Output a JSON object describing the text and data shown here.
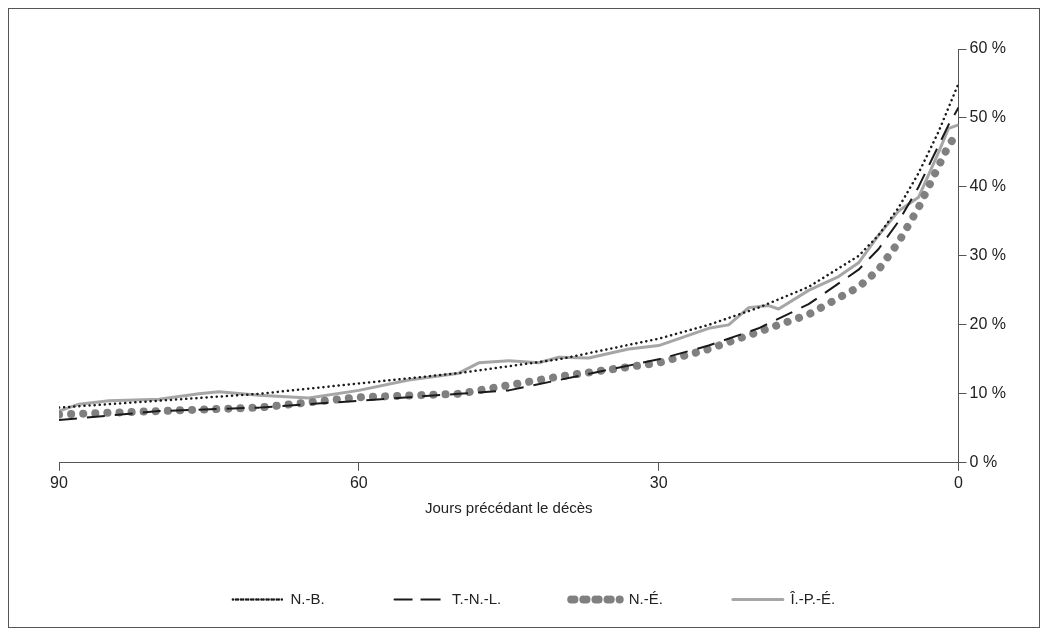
{
  "chart_data": {
    "type": "line",
    "xlabel": "Jours précédant le décès",
    "xlim": [
      90,
      0
    ],
    "xticks": [
      90,
      60,
      30,
      0
    ],
    "ylim": [
      0,
      60
    ],
    "yticks": [
      {
        "value": 0,
        "label": "0 %"
      },
      {
        "value": 10,
        "label": "10 %"
      },
      {
        "value": 20,
        "label": "20 %"
      },
      {
        "value": 30,
        "label": "30 %"
      },
      {
        "value": 40,
        "label": "40 %"
      },
      {
        "value": 50,
        "label": "50 %"
      },
      {
        "value": 60,
        "label": "60 %"
      }
    ],
    "grid": false,
    "legend": "bottom",
    "marker": "none",
    "series": [
      {
        "name": "N.-B.",
        "color": "#1a1a1a",
        "line_style": "dotted",
        "x": [
          90,
          80,
          70,
          60,
          50,
          40,
          30,
          25,
          20,
          15,
          10,
          8,
          6,
          4,
          2,
          1,
          0
        ],
        "values": [
          8.0,
          9.0,
          10.0,
          11.5,
          13.0,
          15.0,
          18.0,
          20.0,
          22.5,
          25.5,
          30,
          33,
          37,
          42,
          48,
          51.5,
          55
        ]
      },
      {
        "name": "T.-N.-L.",
        "color": "#1a1a1a",
        "line_style": "dashed",
        "x": [
          90,
          80,
          70,
          60,
          50,
          45,
          40,
          35,
          30,
          25,
          20,
          15,
          10,
          8,
          6,
          4,
          2,
          1,
          0
        ],
        "values": [
          6.2,
          7.5,
          8.0,
          9.0,
          10.0,
          10.5,
          12.0,
          13.5,
          15.0,
          17.0,
          19.5,
          23,
          28,
          31,
          35,
          40,
          46,
          49,
          51.5
        ]
      },
      {
        "name": "N.-É.",
        "color": "#808080",
        "line_style": "dotted",
        "x": [
          90,
          80,
          70,
          60,
          50,
          40,
          30,
          25,
          20,
          15,
          10,
          8,
          6,
          4,
          2,
          1,
          0
        ],
        "values": [
          7.0,
          7.5,
          8.0,
          9.5,
          10.0,
          12.5,
          14.5,
          16.5,
          19,
          21.5,
          25.5,
          28,
          32,
          37,
          43,
          46,
          48
        ]
      },
      {
        "name": "Î.-P.-É.",
        "color": "#a6a6a6",
        "line_style": "solid",
        "x": [
          90,
          88,
          85,
          80,
          76,
          74,
          70,
          65,
          60,
          55,
          50,
          48,
          45,
          42,
          40,
          37,
          33,
          30,
          25,
          23,
          21,
          19,
          18,
          15,
          12,
          10,
          8,
          6,
          4,
          2,
          1,
          0
        ],
        "values": [
          7.5,
          8.5,
          9,
          9.2,
          10.0,
          10.3,
          9.8,
          9.4,
          10.5,
          12,
          13,
          14.5,
          14.8,
          14.5,
          15.3,
          15.2,
          16.5,
          17,
          19.5,
          20,
          22.5,
          22.8,
          22.3,
          25,
          27,
          29,
          33,
          36.5,
          38.5,
          45,
          48.5,
          49
        ]
      }
    ]
  }
}
